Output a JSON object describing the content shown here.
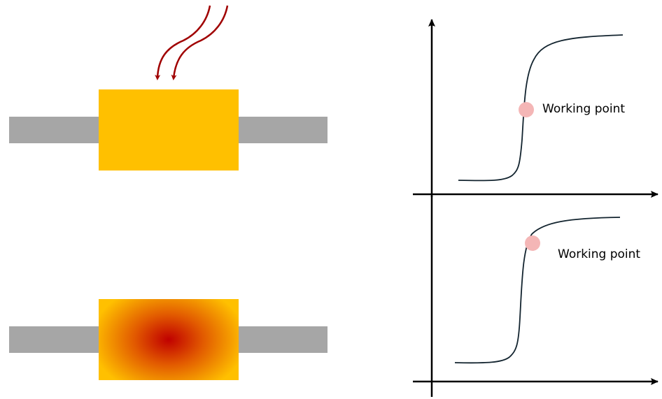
{
  "top_device": {
    "heat_arrows_color": "#a00000",
    "block_color": "#ffc000",
    "bar_color": "#a6a6a6"
  },
  "bottom_device": {
    "gradient_center_color": "#c00000",
    "gradient_edge_color": "#ffc000",
    "bar_color": "#a6a6a6"
  },
  "top_plot": {
    "working_point_label": "Working point",
    "marker_color": "#f4b6b6"
  },
  "bottom_plot": {
    "working_point_label": "Working point",
    "marker_color": "#f4b6b6"
  }
}
